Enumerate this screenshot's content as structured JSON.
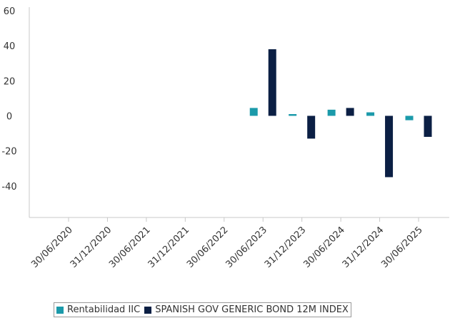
{
  "chart_data": {
    "type": "bar",
    "categories": [
      "30/06/2020",
      "31/12/2020",
      "30/06/2021",
      "31/12/2021",
      "30/06/2022",
      "30/06/2023",
      "31/12/2023",
      "30/06/2024",
      "31/12/2024",
      "30/06/2025"
    ],
    "series": [
      {
        "name": "Rentabilidad IIC",
        "color": "#1b9aaa",
        "values": [
          null,
          null,
          null,
          null,
          null,
          4.5,
          1,
          3.5,
          2,
          -2.5
        ]
      },
      {
        "name": "SPANISH GOV GENERIC BOND 12M INDEX",
        "color": "#0b1f44",
        "values": [
          null,
          null,
          null,
          null,
          null,
          38,
          -13,
          4.5,
          -35,
          -12
        ]
      }
    ],
    "yticks": [
      60,
      40,
      20,
      0,
      -20,
      -40
    ],
    "ylim": [
      -58,
      60
    ],
    "title": "",
    "xlabel": "",
    "ylabel": "",
    "legend_position": "bottom"
  }
}
